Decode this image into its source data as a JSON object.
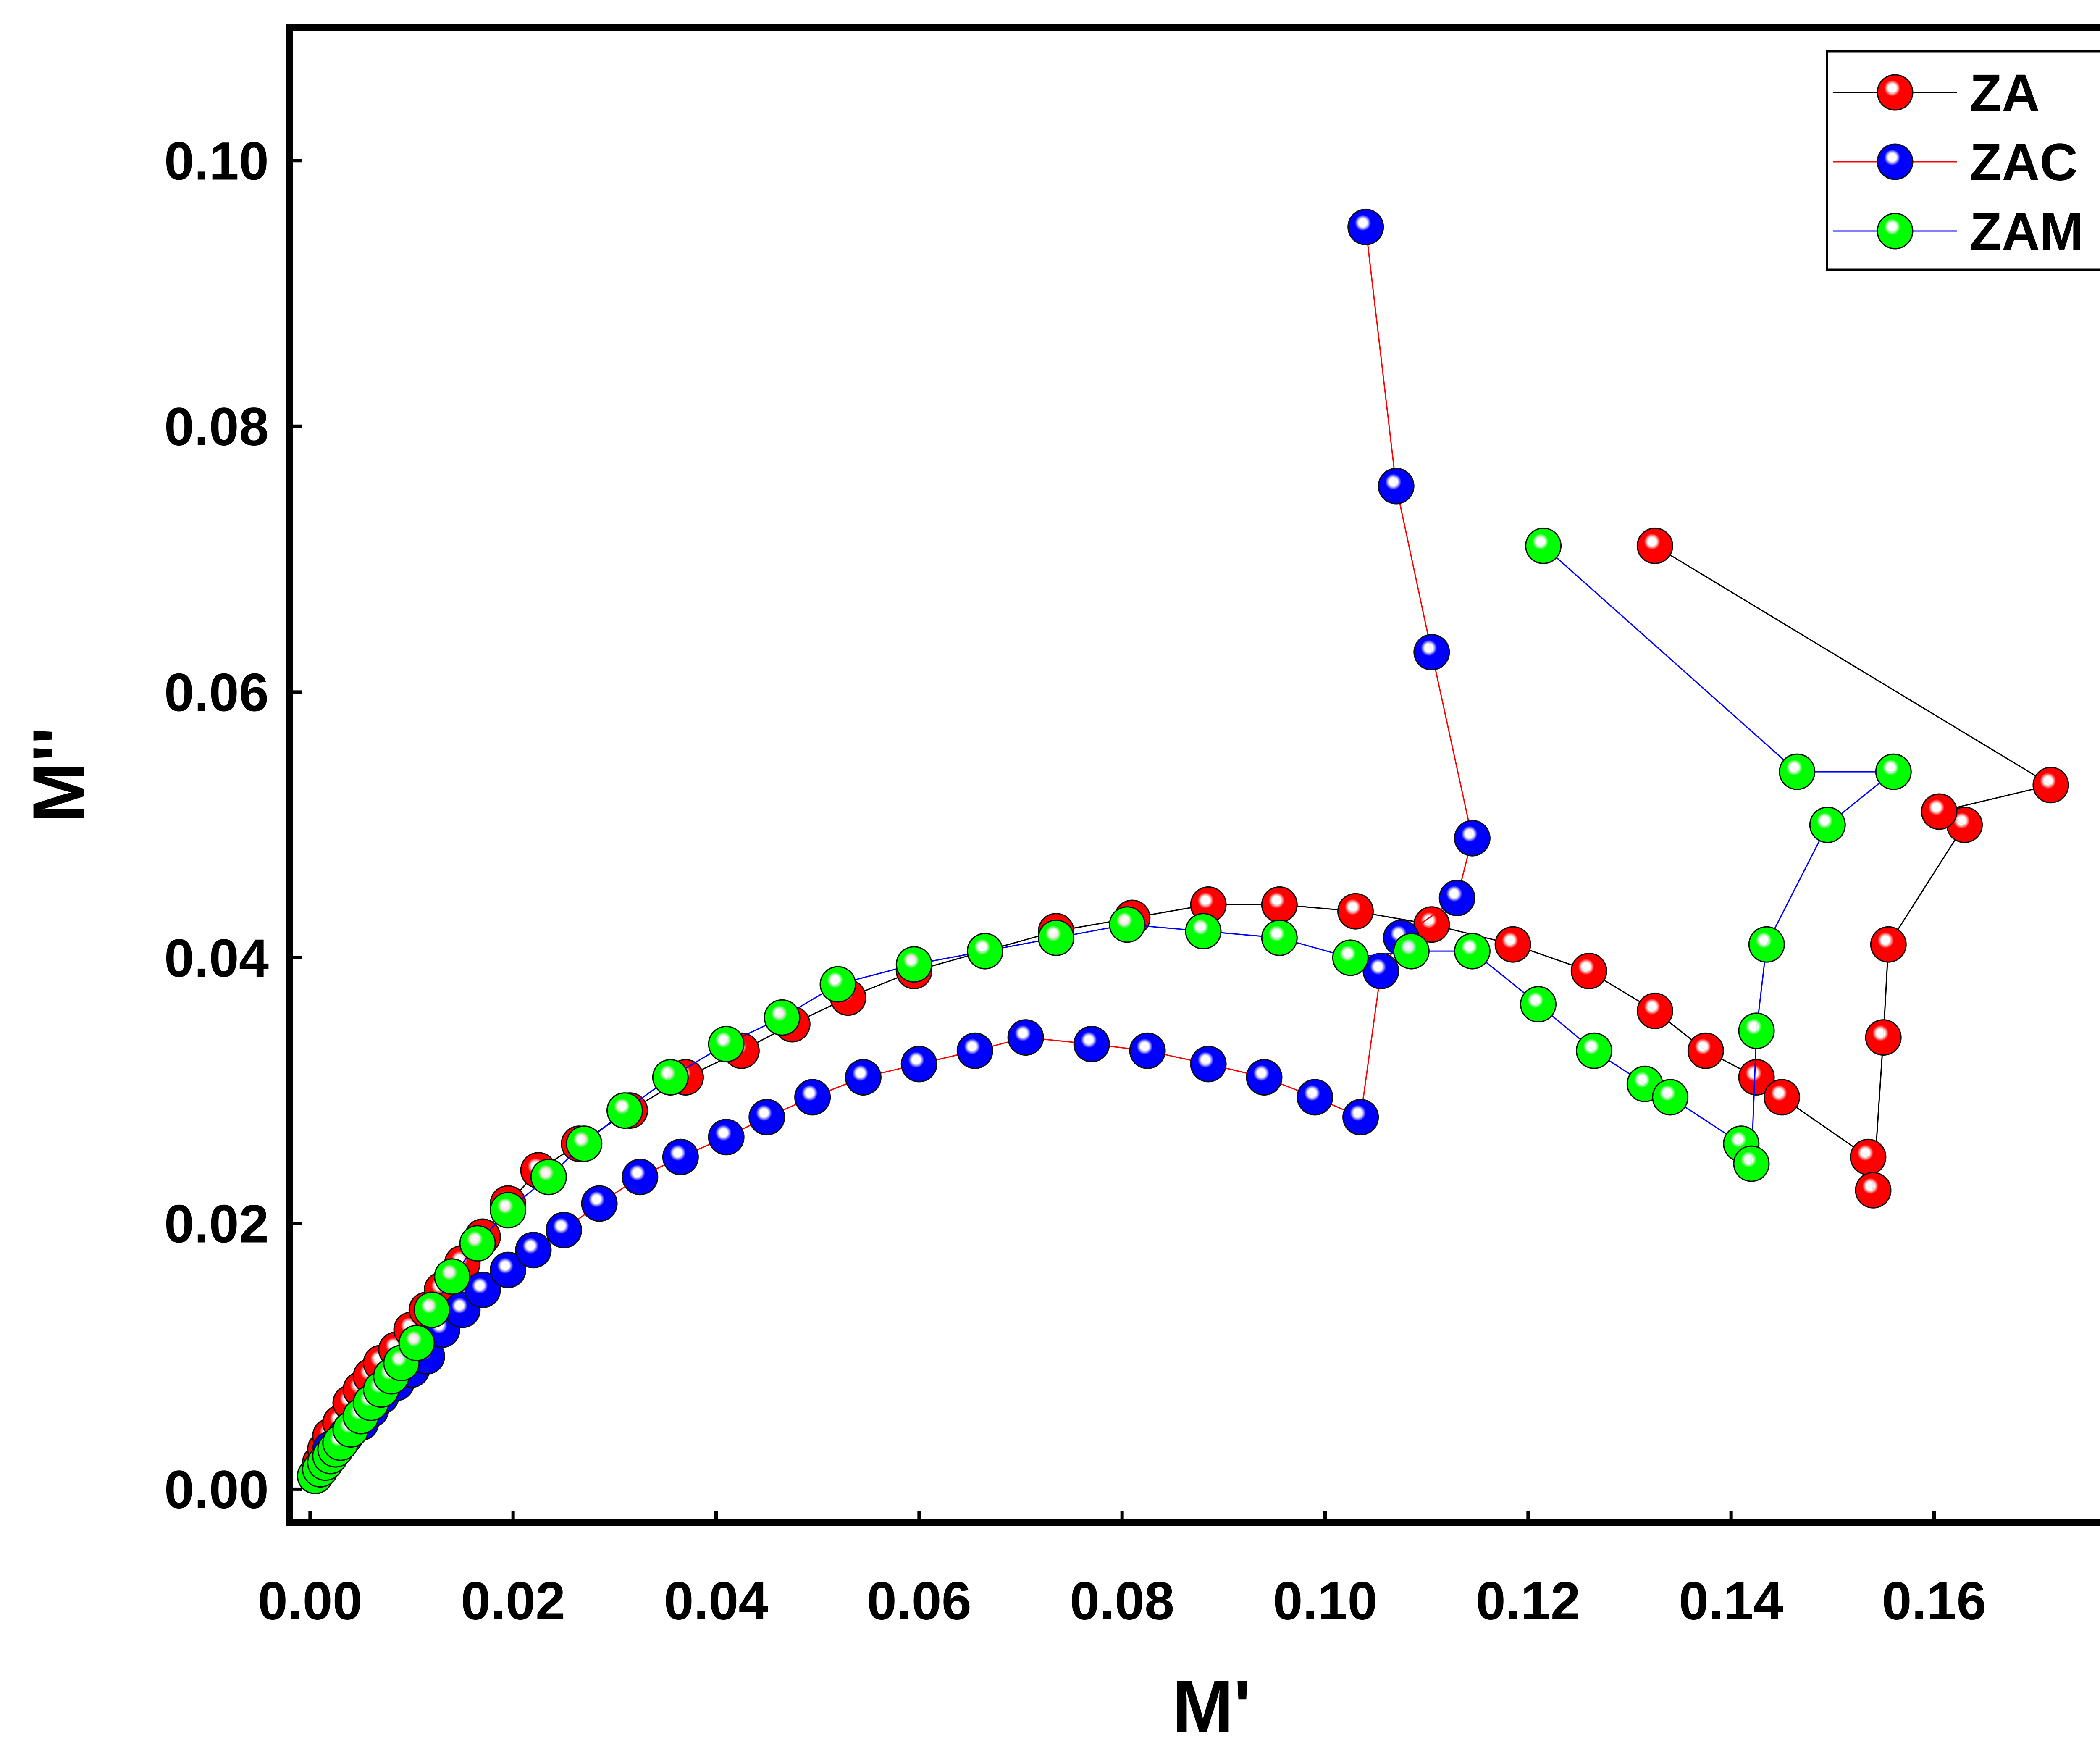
{
  "chart_data": {
    "type": "scatter",
    "title": "",
    "xlabel": "M'",
    "ylabel": "M''",
    "xlim": [
      -0.002,
      0.178
    ],
    "ylim": [
      -0.0025,
      0.11
    ],
    "xticks": [
      0.0,
      0.02,
      0.04,
      0.06,
      0.08,
      0.1,
      0.12,
      0.14,
      0.16
    ],
    "yticks": [
      0.0,
      0.02,
      0.04,
      0.06,
      0.08,
      0.1
    ],
    "xtick_labels": [
      "0.00",
      "0.02",
      "0.04",
      "0.06",
      "0.08",
      "0.10",
      "0.12",
      "0.14",
      "0.16"
    ],
    "ytick_labels": [
      "0.00",
      "0.02",
      "0.04",
      "0.06",
      "0.08",
      "0.10"
    ],
    "grid": false,
    "legend_position": "top-right",
    "series": [
      {
        "name": "ZA",
        "marker_color": "#ff0000",
        "line_color": "#000000",
        "x": [
          0.0005,
          0.001,
          0.0015,
          0.002,
          0.003,
          0.004,
          0.005,
          0.006,
          0.007,
          0.0085,
          0.01,
          0.0115,
          0.013,
          0.015,
          0.017,
          0.0195,
          0.0225,
          0.0265,
          0.0315,
          0.037,
          0.0425,
          0.0475,
          0.053,
          0.0595,
          0.0665,
          0.0735,
          0.081,
          0.0885,
          0.0955,
          0.103,
          0.1105,
          0.1185,
          0.126,
          0.1325,
          0.1375,
          0.1425,
          0.145,
          0.1535,
          0.154,
          0.155,
          0.1555,
          0.163,
          0.1605,
          0.1715,
          0.1325
        ],
        "y": [
          0.001,
          0.002,
          0.003,
          0.004,
          0.005,
          0.0065,
          0.0075,
          0.0085,
          0.0095,
          0.0105,
          0.012,
          0.0135,
          0.015,
          0.017,
          0.019,
          0.0215,
          0.024,
          0.026,
          0.0285,
          0.031,
          0.033,
          0.035,
          0.037,
          0.039,
          0.0405,
          0.042,
          0.043,
          0.044,
          0.044,
          0.0435,
          0.0425,
          0.041,
          0.039,
          0.036,
          0.033,
          0.031,
          0.0295,
          0.025,
          0.0225,
          0.034,
          0.041,
          0.05,
          0.051,
          0.053,
          0.071
        ]
      },
      {
        "name": "ZAC",
        "marker_color": "#0000ff",
        "line_color": "#ff0000",
        "x": [
          0.0005,
          0.001,
          0.0015,
          0.002,
          0.003,
          0.0035,
          0.004,
          0.005,
          0.006,
          0.007,
          0.0085,
          0.01,
          0.0115,
          0.013,
          0.015,
          0.017,
          0.0195,
          0.022,
          0.025,
          0.0285,
          0.0325,
          0.0365,
          0.041,
          0.045,
          0.0495,
          0.0545,
          0.06,
          0.0655,
          0.0705,
          0.077,
          0.0825,
          0.0885,
          0.094,
          0.099,
          0.1035,
          0.1055,
          0.1075,
          0.113,
          0.1145,
          0.1105,
          0.107,
          0.104
        ],
        "y": [
          0.001,
          0.0015,
          0.002,
          0.003,
          0.0035,
          0.004,
          0.0045,
          0.005,
          0.006,
          0.007,
          0.008,
          0.009,
          0.01,
          0.012,
          0.0135,
          0.015,
          0.0165,
          0.018,
          0.0195,
          0.0215,
          0.0235,
          0.025,
          0.0265,
          0.028,
          0.0295,
          0.031,
          0.032,
          0.033,
          0.034,
          0.0335,
          0.033,
          0.032,
          0.031,
          0.0295,
          0.028,
          0.039,
          0.0415,
          0.0445,
          0.049,
          0.063,
          0.0755,
          0.095
        ]
      },
      {
        "name": "ZAM",
        "marker_color": "#00ff00",
        "line_color": "#0000ff",
        "x": [
          0.0005,
          0.001,
          0.0015,
          0.002,
          0.0025,
          0.003,
          0.004,
          0.005,
          0.006,
          0.007,
          0.008,
          0.009,
          0.0105,
          0.012,
          0.014,
          0.0165,
          0.0195,
          0.0235,
          0.027,
          0.031,
          0.0355,
          0.041,
          0.0465,
          0.052,
          0.0595,
          0.0665,
          0.0735,
          0.0805,
          0.088,
          0.0955,
          0.1025,
          0.1085,
          0.1145,
          0.121,
          0.1265,
          0.1315,
          0.134,
          0.141,
          0.142,
          0.1425,
          0.1435,
          0.1495,
          0.156,
          0.1465,
          0.1215
        ],
        "y": [
          0.001,
          0.0015,
          0.002,
          0.0025,
          0.003,
          0.0035,
          0.0045,
          0.0055,
          0.0065,
          0.0075,
          0.0085,
          0.0095,
          0.011,
          0.0135,
          0.016,
          0.0185,
          0.021,
          0.0235,
          0.026,
          0.0285,
          0.031,
          0.0335,
          0.0355,
          0.038,
          0.0395,
          0.0405,
          0.0415,
          0.0425,
          0.042,
          0.0415,
          0.04,
          0.0405,
          0.0405,
          0.0365,
          0.033,
          0.0305,
          0.0295,
          0.026,
          0.0245,
          0.0345,
          0.041,
          0.05,
          0.054,
          0.054,
          0.071
        ]
      }
    ]
  }
}
